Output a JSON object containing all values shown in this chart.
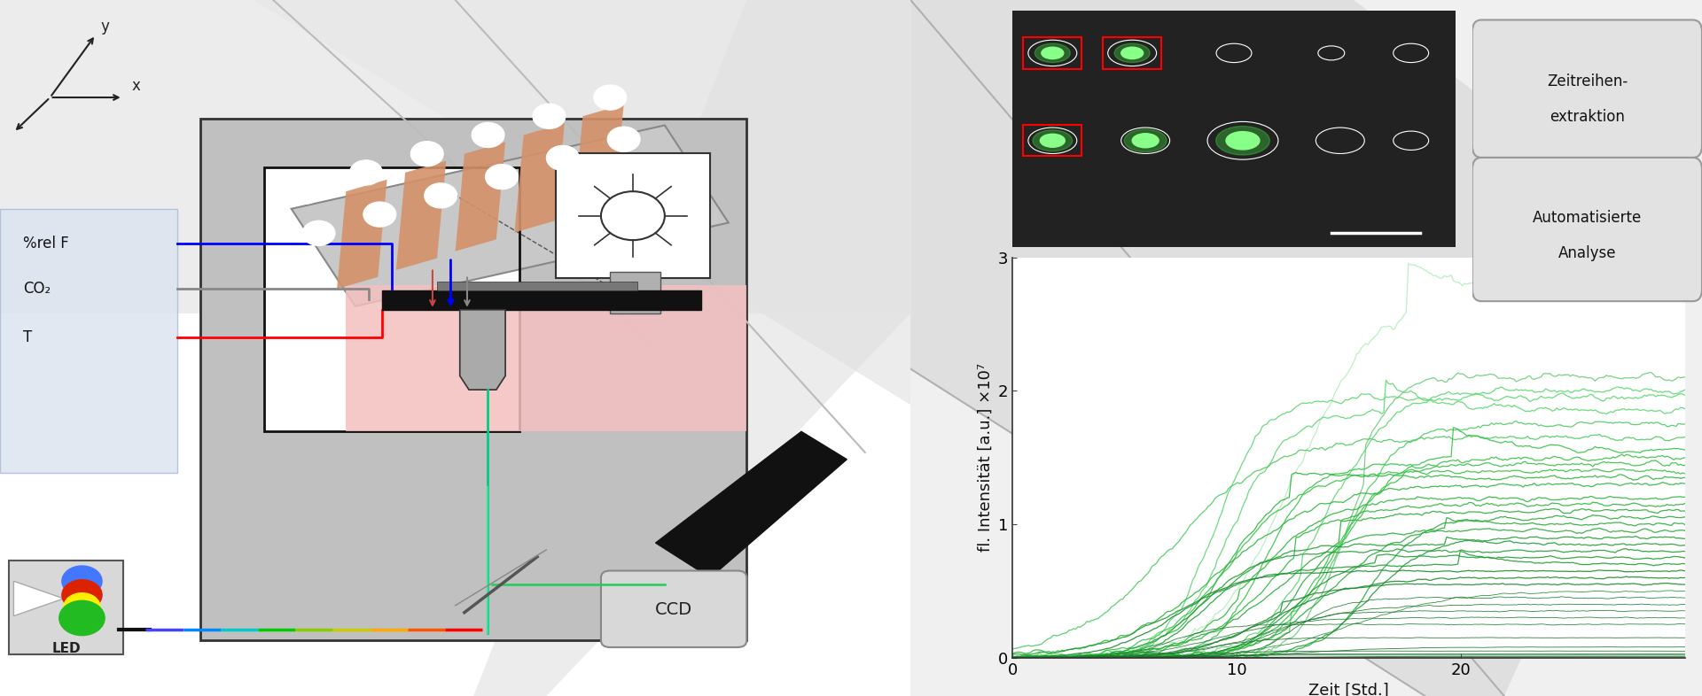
{
  "fig_bgcolor": "#f0f0f0",
  "graph_xlim": [
    0,
    30
  ],
  "graph_ylim": [
    0,
    3
  ],
  "graph_xlabel": "Zeit [Std.]",
  "graph_ylabel": "fl. Intensität [a.u.] ×10⁷",
  "graph_yticks": [
    0,
    1,
    2,
    3
  ],
  "graph_xticks": [
    0,
    10,
    20
  ],
  "num_lines": 40,
  "green_dark": "#1a7a2a",
  "green_mid": "#2db83d",
  "green_light": "#5cd970",
  "button1_line1": "Zeitreihen-",
  "button1_line2": "extraktion",
  "button2_line1": "Automatisierte",
  "button2_line2": "Analyse",
  "button_color": "#e2e2e2",
  "button_border": "#999999",
  "white": "#ffffff",
  "light_grey": "#d8d8d8",
  "mid_grey": "#b0b0b0",
  "dark_grey": "#555555",
  "very_light_grey": "#f0f0f0",
  "microscope_grey": "#c0c0c0",
  "incubator_blue": "#dde4f0",
  "pink_area": "#f5c0c0",
  "chip_color": "#c8c8c8",
  "channel_color": "#d4916a",
  "led_blue": "#4477ff",
  "led_yellow": "#ffee00",
  "led_green": "#22bb22",
  "led_red": "#dd2200"
}
